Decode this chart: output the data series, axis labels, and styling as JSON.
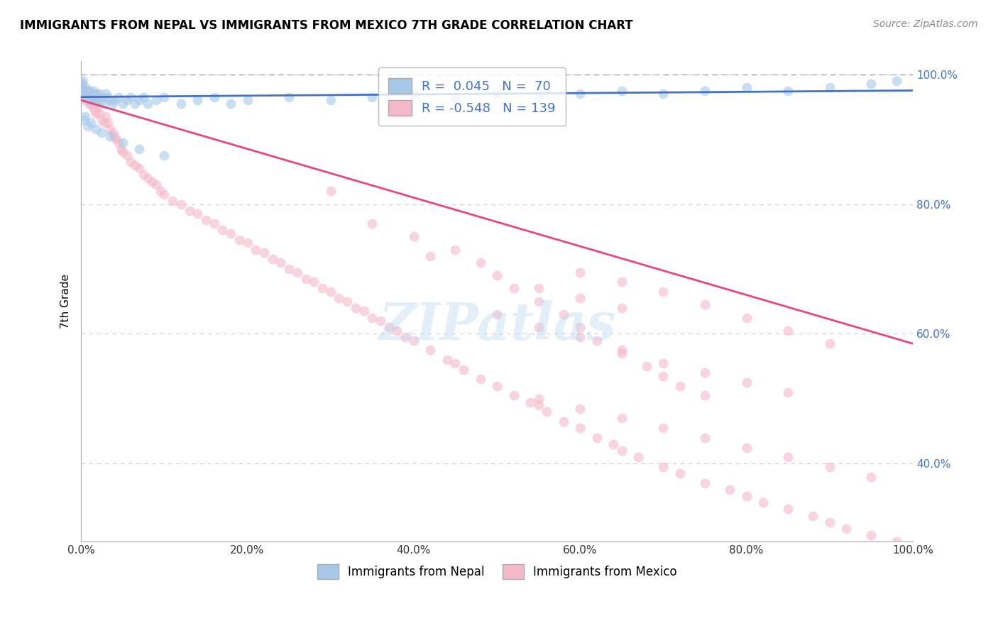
{
  "title": "IMMIGRANTS FROM NEPAL VS IMMIGRANTS FROM MEXICO 7TH GRADE CORRELATION CHART",
  "source": "Source: ZipAtlas.com",
  "ylabel": "7th Grade",
  "legend_label_blue": "Immigrants from Nepal",
  "legend_label_pink": "Immigrants from Mexico",
  "R_blue": 0.045,
  "N_blue": 70,
  "R_pink": -0.548,
  "N_pink": 139,
  "blue_scatter_color": "#a8c8e8",
  "blue_line_color": "#4472c4",
  "pink_scatter_color": "#f4b8c8",
  "pink_line_color": "#e84878",
  "grid_color": "#cccccc",
  "watermark": "ZIPatlas",
  "blue_scatter_x": [
    0.001,
    0.002,
    0.003,
    0.004,
    0.005,
    0.006,
    0.007,
    0.008,
    0.009,
    0.01,
    0.011,
    0.012,
    0.013,
    0.014,
    0.015,
    0.016,
    0.017,
    0.018,
    0.019,
    0.02,
    0.022,
    0.024,
    0.026,
    0.028,
    0.03,
    0.032,
    0.035,
    0.038,
    0.04,
    0.045,
    0.05,
    0.055,
    0.06,
    0.065,
    0.07,
    0.075,
    0.08,
    0.09,
    0.1,
    0.12,
    0.14,
    0.16,
    0.18,
    0.2,
    0.25,
    0.3,
    0.35,
    0.4,
    0.45,
    0.5,
    0.55,
    0.6,
    0.65,
    0.7,
    0.75,
    0.8,
    0.85,
    0.9,
    0.95,
    0.98,
    0.003,
    0.005,
    0.008,
    0.012,
    0.018,
    0.025,
    0.035,
    0.05,
    0.07,
    0.1
  ],
  "blue_scatter_y": [
    0.985,
    0.99,
    0.975,
    0.97,
    0.98,
    0.965,
    0.97,
    0.975,
    0.96,
    0.97,
    0.975,
    0.965,
    0.96,
    0.97,
    0.975,
    0.965,
    0.96,
    0.97,
    0.96,
    0.965,
    0.97,
    0.96,
    0.965,
    0.955,
    0.97,
    0.965,
    0.96,
    0.955,
    0.96,
    0.965,
    0.955,
    0.96,
    0.965,
    0.955,
    0.96,
    0.965,
    0.955,
    0.96,
    0.965,
    0.955,
    0.96,
    0.965,
    0.955,
    0.96,
    0.965,
    0.96,
    0.965,
    0.97,
    0.965,
    0.97,
    0.965,
    0.97,
    0.975,
    0.97,
    0.975,
    0.98,
    0.975,
    0.98,
    0.985,
    0.99,
    0.93,
    0.935,
    0.92,
    0.925,
    0.915,
    0.91,
    0.905,
    0.895,
    0.885,
    0.875
  ],
  "pink_scatter_x": [
    0.001,
    0.002,
    0.003,
    0.004,
    0.005,
    0.006,
    0.007,
    0.008,
    0.009,
    0.01,
    0.012,
    0.014,
    0.016,
    0.018,
    0.02,
    0.022,
    0.025,
    0.028,
    0.03,
    0.032,
    0.035,
    0.038,
    0.04,
    0.042,
    0.045,
    0.048,
    0.05,
    0.055,
    0.06,
    0.065,
    0.07,
    0.075,
    0.08,
    0.085,
    0.09,
    0.095,
    0.1,
    0.11,
    0.12,
    0.13,
    0.14,
    0.15,
    0.16,
    0.17,
    0.18,
    0.19,
    0.2,
    0.21,
    0.22,
    0.23,
    0.24,
    0.25,
    0.26,
    0.27,
    0.28,
    0.29,
    0.3,
    0.31,
    0.32,
    0.33,
    0.34,
    0.35,
    0.36,
    0.37,
    0.38,
    0.39,
    0.4,
    0.42,
    0.44,
    0.45,
    0.46,
    0.48,
    0.5,
    0.52,
    0.54,
    0.55,
    0.56,
    0.58,
    0.6,
    0.62,
    0.64,
    0.65,
    0.67,
    0.7,
    0.72,
    0.75,
    0.78,
    0.8,
    0.82,
    0.85,
    0.88,
    0.9,
    0.92,
    0.95,
    0.98,
    0.3,
    0.35,
    0.4,
    0.42,
    0.45,
    0.48,
    0.5,
    0.52,
    0.55,
    0.58,
    0.6,
    0.62,
    0.65,
    0.68,
    0.7,
    0.72,
    0.75,
    0.5,
    0.55,
    0.6,
    0.65,
    0.7,
    0.75,
    0.8,
    0.85,
    0.55,
    0.6,
    0.65,
    0.55,
    0.6,
    0.65,
    0.7,
    0.75,
    0.8,
    0.85,
    0.9,
    0.95,
    0.6,
    0.65,
    0.7,
    0.75,
    0.8,
    0.85,
    0.9
  ],
  "pink_scatter_y": [
    0.985,
    0.975,
    0.97,
    0.965,
    0.96,
    0.975,
    0.965,
    0.96,
    0.955,
    0.965,
    0.955,
    0.95,
    0.945,
    0.94,
    0.95,
    0.94,
    0.93,
    0.925,
    0.935,
    0.925,
    0.915,
    0.91,
    0.905,
    0.9,
    0.895,
    0.885,
    0.88,
    0.875,
    0.865,
    0.86,
    0.855,
    0.845,
    0.84,
    0.835,
    0.83,
    0.82,
    0.815,
    0.805,
    0.8,
    0.79,
    0.785,
    0.775,
    0.77,
    0.76,
    0.755,
    0.745,
    0.74,
    0.73,
    0.725,
    0.715,
    0.71,
    0.7,
    0.695,
    0.685,
    0.68,
    0.67,
    0.665,
    0.655,
    0.65,
    0.64,
    0.635,
    0.625,
    0.62,
    0.61,
    0.605,
    0.595,
    0.59,
    0.575,
    0.56,
    0.555,
    0.545,
    0.53,
    0.52,
    0.505,
    0.495,
    0.49,
    0.48,
    0.465,
    0.455,
    0.44,
    0.43,
    0.42,
    0.41,
    0.395,
    0.385,
    0.37,
    0.36,
    0.35,
    0.34,
    0.33,
    0.32,
    0.31,
    0.3,
    0.29,
    0.28,
    0.82,
    0.77,
    0.75,
    0.72,
    0.73,
    0.71,
    0.69,
    0.67,
    0.65,
    0.63,
    0.61,
    0.59,
    0.57,
    0.55,
    0.535,
    0.52,
    0.505,
    0.63,
    0.61,
    0.595,
    0.575,
    0.555,
    0.54,
    0.525,
    0.51,
    0.67,
    0.655,
    0.64,
    0.5,
    0.485,
    0.47,
    0.455,
    0.44,
    0.425,
    0.41,
    0.395,
    0.38,
    0.695,
    0.68,
    0.665,
    0.645,
    0.625,
    0.605,
    0.585
  ],
  "xlim": [
    0.0,
    1.0
  ],
  "ylim": [
    0.28,
    1.02
  ],
  "ytick_values": [
    0.4,
    0.6,
    0.8,
    1.0
  ],
  "ytick_labels": [
    "40.0%",
    "60.0%",
    "80.0%",
    "100.0%"
  ],
  "xtick_values": [
    0.0,
    0.2,
    0.4,
    0.6,
    0.8,
    1.0
  ],
  "xtick_labels": [
    "0.0%",
    "20.0%",
    "40.0%",
    "60.0%",
    "80.0%",
    "100.0%"
  ],
  "blue_trend_x0": 0.0,
  "blue_trend_y0": 0.965,
  "blue_trend_x1": 1.0,
  "blue_trend_y1": 0.975,
  "pink_trend_x0": 0.0,
  "pink_trend_y0": 0.96,
  "pink_trend_x1": 1.0,
  "pink_trend_y1": 0.585
}
